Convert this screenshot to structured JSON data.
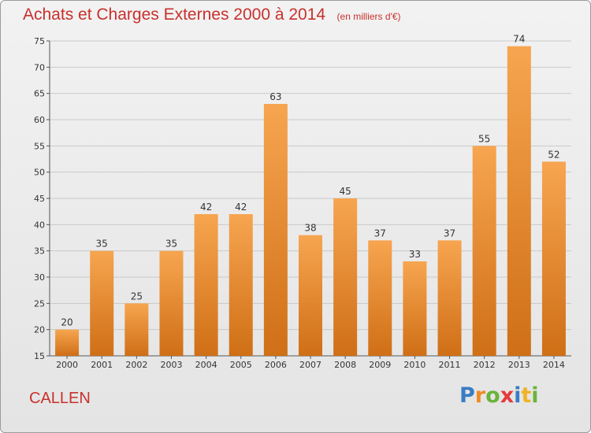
{
  "title": "Achats et Charges Externes 2000 à 2014",
  "subtitle": "(en milliers d'€)",
  "commune": "CALLEN",
  "logo": {
    "text": "Proxiti",
    "letters": [
      {
        "ch": "P",
        "color": "#3a7cc4"
      },
      {
        "ch": "r",
        "color": "#f08a24"
      },
      {
        "ch": "o",
        "color": "#6bb33c"
      },
      {
        "ch": "x",
        "color": "#e33b3b"
      },
      {
        "ch": "i",
        "color": "#3a7cc4"
      },
      {
        "ch": "t",
        "color": "#f0b323"
      },
      {
        "ch": "i",
        "color": "#6bb33c"
      }
    ]
  },
  "colors": {
    "bar_top": "#f7a550",
    "bar_bottom": "#cf6f16",
    "title": "#c8312d",
    "grid": "#c9c9c9"
  },
  "chart_data": {
    "type": "bar",
    "title": "Achats et Charges Externes 2000 à 2014",
    "subtitle": "(en milliers d'€)",
    "categories": [
      "2000",
      "2001",
      "2002",
      "2003",
      "2004",
      "2005",
      "2006",
      "2007",
      "2008",
      "2009",
      "2010",
      "2011",
      "2012",
      "2013",
      "2014"
    ],
    "values": [
      20,
      35,
      25,
      35,
      42,
      42,
      63,
      38,
      45,
      37,
      33,
      37,
      55,
      74,
      52
    ],
    "ylim": [
      15,
      75
    ],
    "yticks": [
      15,
      20,
      25,
      30,
      35,
      40,
      45,
      50,
      55,
      60,
      65,
      70,
      75
    ],
    "grid": true,
    "data_labels": true
  }
}
